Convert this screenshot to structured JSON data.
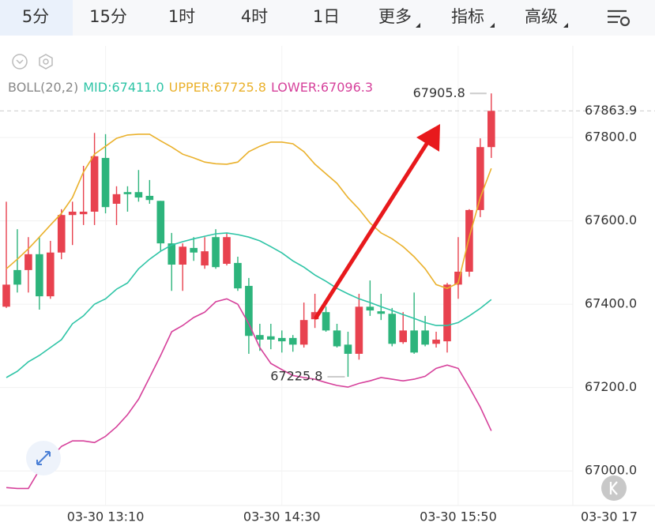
{
  "tabs": [
    "5分",
    "15分",
    "1时",
    "4时",
    "1日",
    "更多",
    "指标",
    "高级"
  ],
  "chart_data": {
    "type": "candlestick",
    "indicator": "BOLL(20,2)",
    "categories": [
      null,
      null,
      null,
      null,
      null,
      null,
      null,
      null,
      null,
      "03-30 13:10",
      null,
      null,
      null,
      null,
      null,
      null,
      null,
      null,
      null,
      null,
      null,
      null,
      null,
      null,
      null,
      "03-30 14:30",
      null,
      null,
      null,
      null,
      null,
      null,
      null,
      null,
      null,
      null,
      null,
      null,
      null,
      null,
      null,
      "03-30 15:50",
      null,
      null,
      null
    ],
    "x_extra_label": "03-30 17",
    "open": [
      67394,
      67482,
      67482,
      67520,
      67419,
      67524,
      67614,
      67616,
      67622,
      67751,
      67641,
      67669,
      67669,
      67660,
      67648,
      67546,
      67495,
      67535,
      67493,
      67561,
      67497,
      67499,
      67444,
      67326,
      67323,
      67319,
      67319,
      67303,
      67364,
      67381,
      67337,
      67303,
      67281,
      67394,
      67383,
      67377,
      67309,
      67337,
      67337,
      67305,
      67311,
      67447,
      67478,
      67626,
      67777
    ],
    "high": [
      67646,
      67580,
      67561,
      67561,
      67552,
      67628,
      67646,
      67732,
      67811,
      67808,
      67683,
      67683,
      67722,
      67698,
      67648,
      67571,
      67546,
      67561,
      67561,
      67580,
      67571,
      67514,
      67463,
      67353,
      67353,
      67337,
      67326,
      67404,
      67425,
      67394,
      67353,
      67334,
      67425,
      67457,
      67425,
      67391,
      67381,
      67428,
      67372,
      67334,
      67451,
      67561,
      67628,
      67798,
      67905.8
    ],
    "low": [
      67391,
      67428,
      67428,
      67387,
      67413,
      67508,
      67542,
      67590,
      67590,
      67618,
      67590,
      67622,
      67646,
      67641,
      67527,
      67432,
      67432,
      67504,
      67485,
      67485,
      67493,
      67432,
      67281,
      67288,
      67292,
      67284,
      67286,
      67296,
      67343,
      67334,
      67296,
      67225.8,
      67267,
      67372,
      67362,
      67299,
      67305,
      67281,
      67299,
      67296,
      67284,
      67413,
      67466,
      67609,
      67751
    ],
    "close": [
      67447,
      67447,
      67520,
      67419,
      67524,
      67614,
      67622,
      67622,
      67755,
      67633,
      67664,
      67664,
      67656,
      67650,
      67546,
      67495,
      67538,
      67524,
      67527,
      67489,
      67561,
      67438,
      67324,
      67315,
      67315,
      67311,
      67303,
      67362,
      67381,
      67337,
      67299,
      67281,
      67394,
      67385,
      67377,
      67305,
      67337,
      67284,
      67303,
      67315,
      67447,
      67478,
      67626,
      67777,
      67863.9
    ],
    "up_color": "#e8424f",
    "down_color": "#2db47c",
    "series": [
      {
        "name": "MID:",
        "legend_value": "67411.0",
        "color": "#2ec4a6",
        "values": [
          67224,
          67239,
          67262,
          67277,
          67296,
          67315,
          67353,
          67372,
          67400,
          67413,
          67436,
          67451,
          67485,
          67508,
          67527,
          67542,
          67550,
          67557,
          67563,
          67569,
          67571,
          67567,
          67561,
          67552,
          67538,
          67523,
          67504,
          67489,
          67470,
          67455,
          67438,
          67425,
          67413,
          67404,
          67394,
          67385,
          67375,
          67366,
          67356,
          67349,
          67349,
          67356,
          67372,
          67390,
          67411.0
        ]
      },
      {
        "name": "UPPER:",
        "legend_value": "67725.8",
        "color": "#eab12c",
        "values": [
          67485,
          67508,
          67533,
          67561,
          67590,
          67618,
          67656,
          67717,
          67760,
          67779,
          67798,
          67806,
          67808,
          67808,
          67792,
          67777,
          67760,
          67751,
          67741,
          67737,
          67736,
          67741,
          67766,
          67779,
          67789,
          67789,
          67785,
          67766,
          67736,
          67713,
          67690,
          67656,
          67628,
          67595,
          67571,
          67557,
          67538,
          67514,
          67485,
          67447,
          67438,
          67451,
          67561,
          67656,
          67725.8
        ]
      },
      {
        "name": "LOWER:",
        "legend_value": "67096.3",
        "color": "#d6419b",
        "values": [
          66960,
          66958,
          66958,
          67002,
          67030,
          67059,
          67072,
          67072,
          67068,
          67083,
          67106,
          67135,
          67172,
          67224,
          67277,
          67334,
          67349,
          67368,
          67381,
          67406,
          67413,
          67400,
          67353,
          67296,
          67258,
          67243,
          67229,
          67224,
          67220,
          67212,
          67205,
          67201,
          67210,
          67216,
          67224,
          67220,
          67216,
          67220,
          67227,
          67246,
          67254,
          67246,
          67201,
          67153,
          67096.3
        ]
      }
    ],
    "ylim": [
      66917,
      68020
    ],
    "yticks": [
      {
        "value": 67000,
        "label": "67000.0"
      },
      {
        "value": 67200,
        "label": "67200.0"
      },
      {
        "value": 67400,
        "label": "67400.0"
      },
      {
        "value": 67600,
        "label": "67600.0"
      },
      {
        "value": 67800,
        "label": "67800.0"
      }
    ],
    "grid": true
  }
}
